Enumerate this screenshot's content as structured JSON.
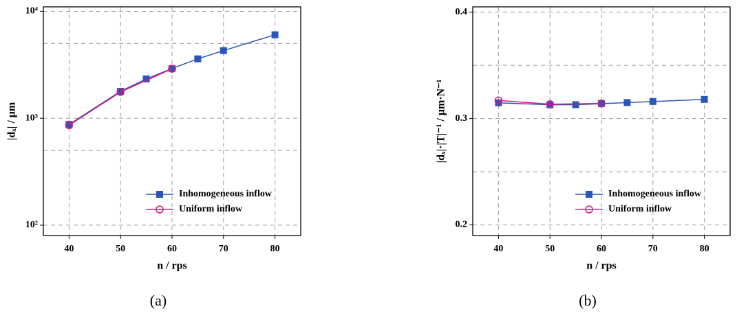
{
  "chart_data": [
    {
      "type": "line",
      "y_label": "|dₓ| / μm",
      "x_label": "n / rps",
      "caption": "(a)",
      "log_y": true,
      "xlim": [
        35,
        85
      ],
      "xticks": [
        40,
        50,
        60,
        70,
        80
      ],
      "ylim": [
        80,
        11000
      ],
      "yticks": [
        {
          "value": 100,
          "label": "10²"
        },
        {
          "value": 1000,
          "label": "10³"
        },
        {
          "value": 10000,
          "label": "10⁴"
        }
      ],
      "minor_grid": [
        500,
        5000
      ],
      "grid": true,
      "legend": "lower right",
      "series": [
        {
          "name": "Inhomogeneous inflow",
          "color": "#2b55b8",
          "marker": "square",
          "x": [
            40,
            50,
            55,
            60,
            65,
            70,
            80
          ],
          "values": [
            875,
            1786,
            2330,
            2915,
            3590,
            4290,
            6030
          ]
        },
        {
          "name": "Uniform inflow",
          "color": "#e0157f",
          "marker": "circle",
          "x": [
            40,
            50,
            60
          ],
          "values": [
            860,
            1760,
            2900
          ]
        }
      ]
    },
    {
      "type": "line",
      "y_label": "|dₓ|·|T|⁻¹ / μm·N⁻¹",
      "x_label": "n / rps",
      "caption": "(b)",
      "log_y": false,
      "xlim": [
        35,
        85
      ],
      "xticks": [
        40,
        50,
        60,
        70,
        80
      ],
      "ylim": [
        0.19,
        0.405
      ],
      "yticks": [
        0.2,
        0.3,
        0.4
      ],
      "minor_grid": [
        0.25,
        0.35
      ],
      "grid": true,
      "legend": "lower right",
      "series": [
        {
          "name": "Inhomogeneous inflow",
          "color": "#2b55b8",
          "marker": "square",
          "x": [
            40,
            50,
            55,
            60,
            65,
            70,
            80
          ],
          "values": [
            0.3148,
            0.3129,
            0.313,
            0.314,
            0.315,
            0.316,
            0.318
          ]
        },
        {
          "name": "Uniform inflow",
          "color": "#e0157f",
          "marker": "circle",
          "x": [
            40,
            50,
            60
          ],
          "values": [
            0.317,
            0.3135,
            0.3142
          ]
        }
      ]
    }
  ]
}
